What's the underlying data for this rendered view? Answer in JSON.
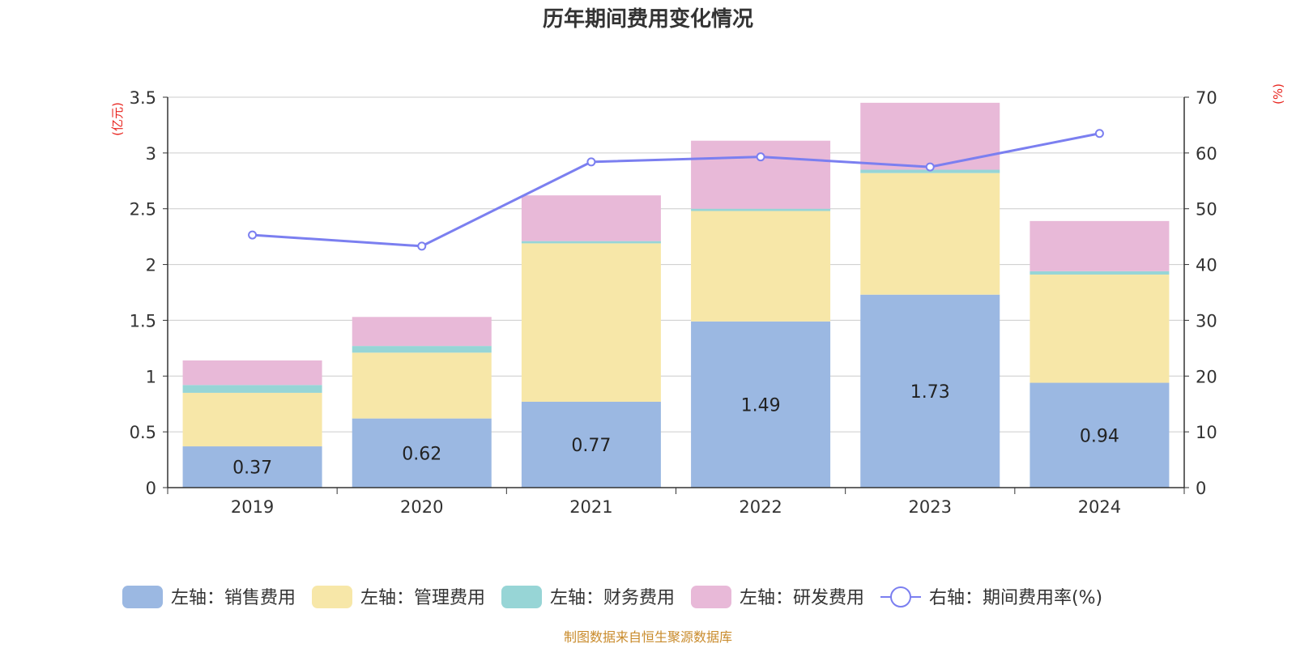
{
  "chart_data": {
    "type": "bar",
    "title": "历年期间费用变化情况",
    "left_unit": "(亿元)",
    "right_unit": "(%)",
    "categories": [
      "2019",
      "2020",
      "2021",
      "2022",
      "2023",
      "2024"
    ],
    "series": [
      {
        "name": "左轴：销售费用",
        "axis": "left",
        "type": "bar",
        "color": "#9bb8e2",
        "values": [
          0.37,
          0.62,
          0.77,
          1.49,
          1.73,
          0.94
        ],
        "labels_shown": true
      },
      {
        "name": "左轴：管理费用",
        "axis": "left",
        "type": "bar",
        "color": "#f7e7a8",
        "values": [
          0.48,
          0.59,
          1.42,
          0.99,
          1.09,
          0.97
        ]
      },
      {
        "name": "左轴：财务费用",
        "axis": "left",
        "type": "bar",
        "color": "#97d5d6",
        "values": [
          0.07,
          0.06,
          0.02,
          0.02,
          0.03,
          0.03
        ]
      },
      {
        "name": "左轴：研发费用",
        "axis": "left",
        "type": "bar",
        "color": "#e8b9d8",
        "values": [
          0.22,
          0.26,
          0.41,
          0.61,
          0.6,
          0.45
        ]
      },
      {
        "name": "右轴：期间费用率(%)",
        "axis": "right",
        "type": "line",
        "color": "#7b7ff0",
        "values": [
          45.3,
          43.3,
          58.4,
          59.3,
          57.5,
          63.5
        ]
      }
    ],
    "left_axis": {
      "min": 0,
      "max": 3.5,
      "ticks": [
        "0",
        "0.5",
        "1",
        "1.5",
        "2",
        "2.5",
        "3",
        "3.5"
      ]
    },
    "right_axis": {
      "min": 0,
      "max": 70,
      "ticks": [
        "0",
        "10",
        "20",
        "30",
        "40",
        "50",
        "60",
        "70"
      ]
    },
    "grid": true,
    "legend_position": "bottom"
  },
  "source_note": "制图数据来自恒生聚源数据库"
}
